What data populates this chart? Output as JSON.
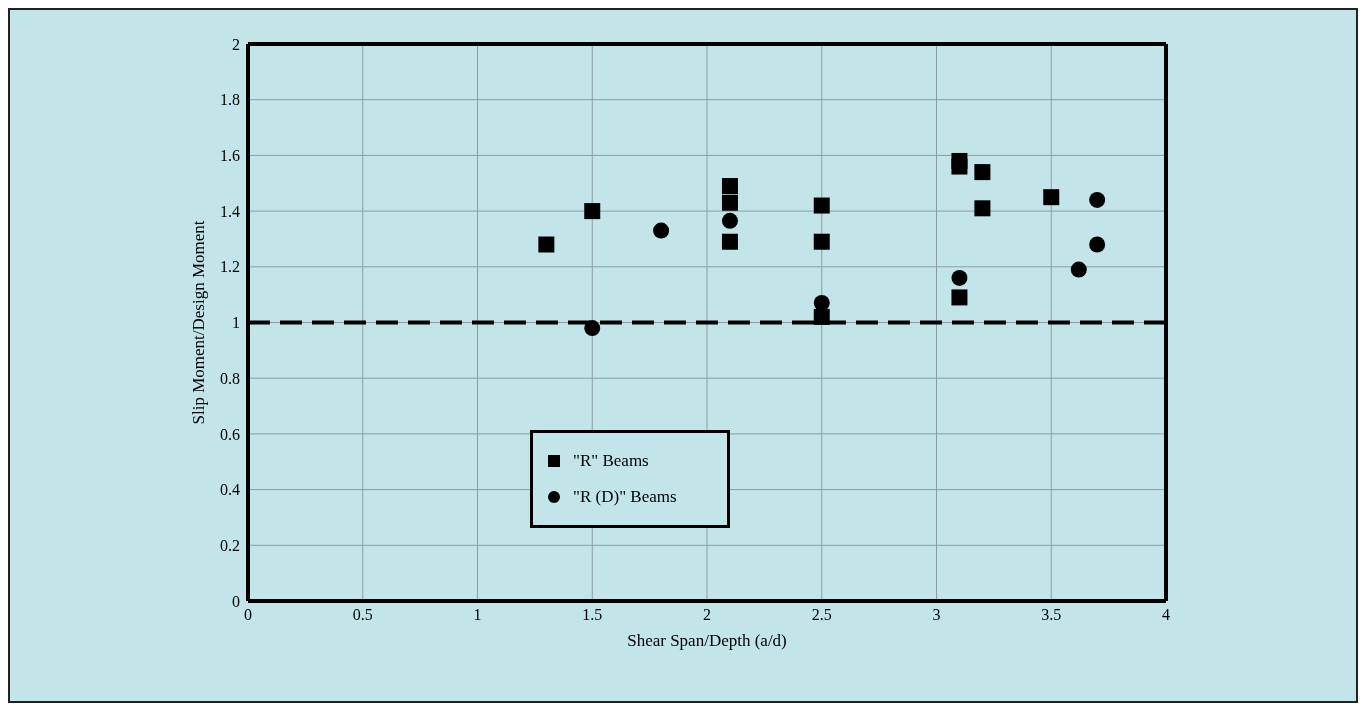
{
  "chart_data": {
    "type": "scatter",
    "xlabel": "Shear Span/Depth (a/d)",
    "ylabel": "Slip Moment/Design Moment",
    "xlim": [
      0,
      4
    ],
    "xticks": [
      0,
      0.5,
      1,
      1.5,
      2,
      2.5,
      3,
      3.5,
      4
    ],
    "ylim": [
      0,
      2
    ],
    "yticks": [
      0,
      0.2,
      0.4,
      0.6,
      0.8,
      1,
      1.2,
      1.4,
      1.6,
      1.8,
      2
    ],
    "grid": true,
    "legend": "bottom",
    "ref_lines": [
      {
        "axis": "y",
        "value": 1,
        "line_style": "dashed",
        "color": "#000000"
      }
    ],
    "series": [
      {
        "name": "\"R\" Beams",
        "color": "#000000",
        "marker": "square",
        "x": [
          1.3,
          1.5,
          2.1,
          2.1,
          2.1,
          2.5,
          2.5,
          2.5,
          3.1,
          3.1,
          3.2,
          3.2,
          3.1,
          3.5
        ],
        "values": [
          1.28,
          1.4,
          1.29,
          1.43,
          1.49,
          1.42,
          1.29,
          1.02,
          1.56,
          1.58,
          1.54,
          1.41,
          1.09,
          1.45
        ]
      },
      {
        "name": "\"R (D)\" Beams",
        "color": "#000000",
        "marker": "circle",
        "x": [
          1.5,
          1.8,
          2.1,
          2.5,
          3.1,
          3.62,
          3.7,
          3.7
        ],
        "values": [
          0.98,
          1.33,
          1.365,
          1.07,
          1.16,
          1.19,
          1.28,
          1.44
        ]
      }
    ]
  }
}
